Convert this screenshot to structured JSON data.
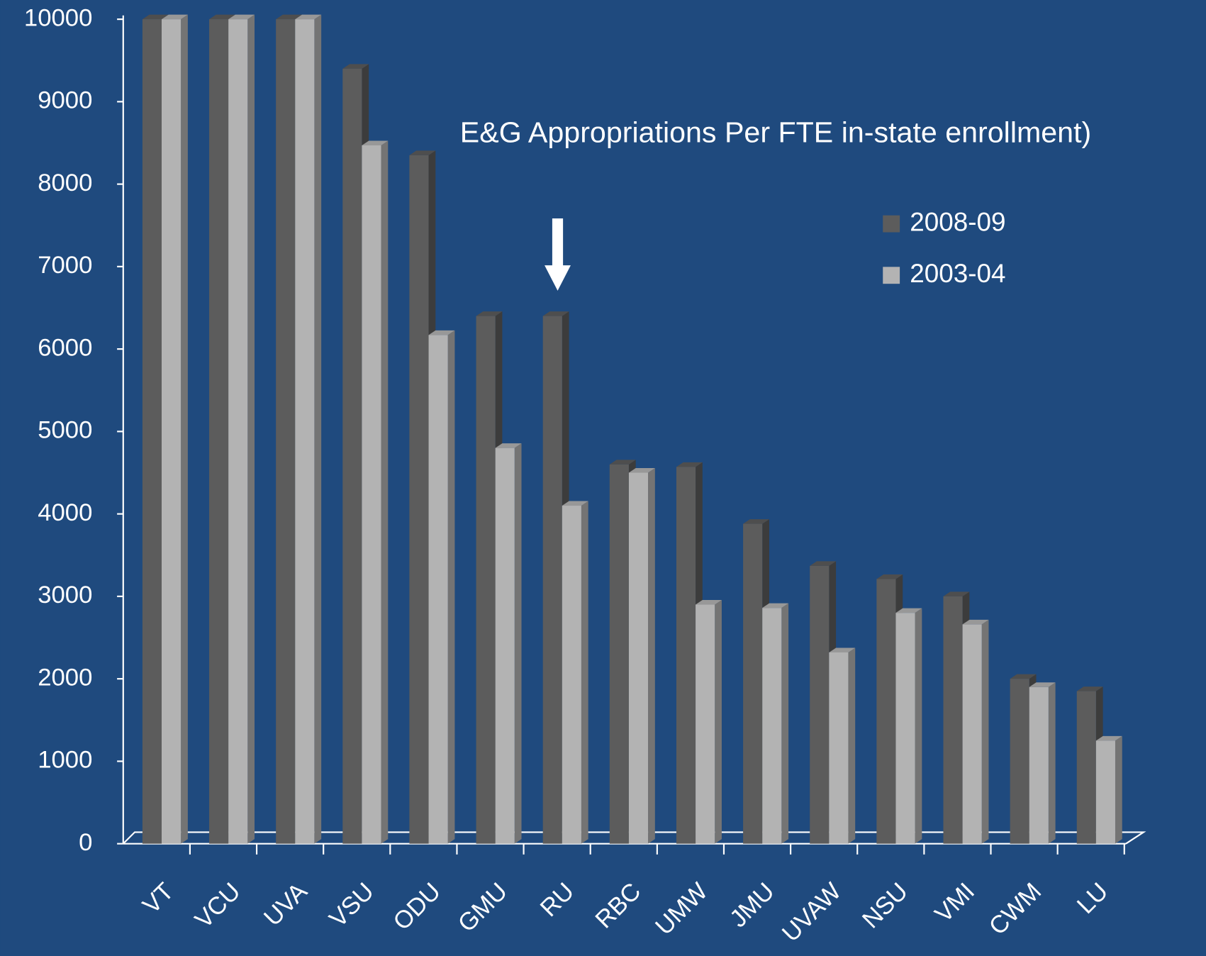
{
  "chart_data": {
    "type": "bar3d",
    "title": "E&G Appropriations Per FTE in-state enrollment)",
    "categories": [
      "VT",
      "VCU",
      "UVA",
      "VSU",
      "ODU",
      "GMU",
      "RU",
      "RBC",
      "UMW",
      "JMU",
      "UVAW",
      "NSU",
      "VMI",
      "CWM",
      "LU"
    ],
    "series": [
      {
        "name": "2008-09",
        "color": "#5c5c5c",
        "values": [
          10000,
          10000,
          10000,
          9400,
          8350,
          6400,
          6400,
          4600,
          4570,
          3880,
          3370,
          3210,
          3000,
          2000,
          1850
        ]
      },
      {
        "name": "2003-04",
        "color": "#b3b3b3",
        "values": [
          10000,
          10000,
          10000,
          8470,
          6170,
          4800,
          4100,
          4500,
          2900,
          2860,
          2320,
          2800,
          2660,
          1900,
          1250
        ]
      }
    ],
    "ylim": [
      0,
      10000
    ],
    "yticks": [
      0,
      1000,
      2000,
      3000,
      4000,
      5000,
      6000,
      7000,
      8000,
      9000,
      10000
    ]
  }
}
